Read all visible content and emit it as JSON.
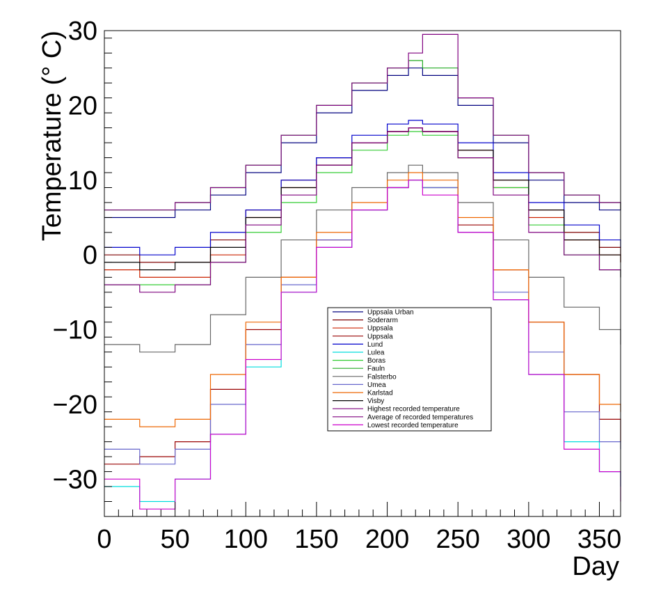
{
  "chart_data": {
    "type": "line",
    "title": "",
    "xlabel": "Day",
    "ylabel": "Temperature (° C)",
    "xlim": [
      0,
      365
    ],
    "ylim": [
      -35,
      30
    ],
    "grid": false,
    "legend_placement": "center-bottom",
    "x_ticks": [
      "0",
      "50",
      "100",
      "150",
      "200",
      "250",
      "300",
      "350"
    ],
    "y_ticks": [
      "30",
      "20",
      "10",
      "0",
      "−10",
      "−20",
      "−30"
    ],
    "x": [
      0,
      25,
      50,
      75,
      100,
      125,
      150,
      175,
      200,
      215,
      225,
      250,
      275,
      300,
      325,
      350,
      365
    ],
    "series": [
      {
        "name": "Uppsala Urban",
        "color": "#00007f",
        "values": [
          5,
          5,
          6,
          8,
          11,
          15,
          19,
          22,
          24,
          25,
          24,
          20,
          15,
          10,
          7,
          6,
          6
        ]
      },
      {
        "name": "Soderarm",
        "color": "#7f0000",
        "values": [
          0,
          -1,
          -1,
          2,
          6,
          10,
          13,
          15,
          16.5,
          17,
          16.5,
          14,
          10,
          6,
          3,
          1,
          0
        ]
      },
      {
        "name": "Uppsala",
        "color": "#cc2200",
        "values": [
          -2,
          -3,
          -3,
          0,
          5,
          9,
          12,
          15,
          16.5,
          17,
          16.5,
          13,
          9,
          5,
          2,
          0,
          -1
        ]
      },
      {
        "name": "Uppsala",
        "color": "#990000",
        "values": [
          -28,
          -27,
          -25,
          -18,
          -10,
          -3,
          2,
          6,
          9,
          10,
          9,
          4,
          -2,
          -9,
          -16,
          -22,
          -25
        ]
      },
      {
        "name": "Lund",
        "color": "#0000cc",
        "values": [
          1,
          0,
          1,
          3,
          6,
          10,
          13,
          16,
          17.5,
          18,
          17.5,
          15,
          11,
          7,
          4,
          2,
          1
        ]
      },
      {
        "name": "Lulea",
        "color": "#00dddd",
        "values": [
          -31,
          -33,
          -30,
          -24,
          -15,
          -5,
          1,
          6,
          9,
          10,
          9,
          3,
          -6,
          -16,
          -25,
          -29,
          -31
        ]
      },
      {
        "name": "Boras",
        "color": "#33cc33",
        "values": [
          -4,
          -4,
          -4,
          -1,
          3,
          7,
          11,
          14,
          16,
          16.5,
          16,
          13,
          9,
          4,
          0,
          -2,
          -3
        ]
      },
      {
        "name": "Fauln",
        "color": "#22aa22",
        "values": [
          6,
          6,
          7,
          9,
          12,
          16,
          20,
          23,
          25,
          26,
          25,
          21,
          16,
          11,
          8,
          7,
          6
        ]
      },
      {
        "name": "Falsterbo",
        "color": "#666666",
        "values": [
          -12,
          -13,
          -12,
          -8,
          -3,
          2,
          6,
          9,
          11,
          12,
          11,
          7,
          2,
          -3,
          -7,
          -10,
          -12
        ]
      },
      {
        "name": "Umea",
        "color": "#6666cc",
        "values": [
          -26,
          -28,
          -26,
          -20,
          -12,
          -4,
          2,
          6,
          9,
          10,
          9,
          3,
          -5,
          -13,
          -21,
          -25,
          -26
        ]
      },
      {
        "name": "Karlstad",
        "color": "#ee6600",
        "values": [
          -22,
          -23,
          -22,
          -16,
          -9,
          -3,
          3,
          7,
          10,
          11,
          10,
          5,
          -2,
          -9,
          -16,
          -20,
          -21
        ]
      },
      {
        "name": "Visby",
        "color": "#000000",
        "values": [
          -1,
          -2,
          -1,
          1,
          5,
          9,
          12,
          15,
          16.5,
          17,
          16.5,
          14,
          10,
          6,
          2,
          0,
          -1
        ]
      },
      {
        "name": "Highest recorded temperature",
        "color": "#7f007f",
        "values": [
          6,
          6,
          7,
          9,
          12,
          16,
          20,
          23,
          25,
          27,
          29.5,
          21,
          16,
          11,
          8,
          7,
          6
        ]
      },
      {
        "name": "Average of recorded temperatures",
        "color": "#7f007f",
        "values": [
          -4,
          -5,
          -4,
          -1,
          4,
          8,
          12,
          15,
          16.5,
          17,
          16.5,
          13,
          8,
          3,
          0,
          -2,
          -3
        ]
      },
      {
        "name": "Lowest recorded temperature",
        "color": "#cc00cc",
        "values": [
          -30,
          -34,
          -30,
          -24,
          -14,
          -5,
          1,
          6,
          9,
          10,
          8,
          3,
          -6,
          -16,
          -26,
          -29,
          -33
        ]
      }
    ]
  }
}
